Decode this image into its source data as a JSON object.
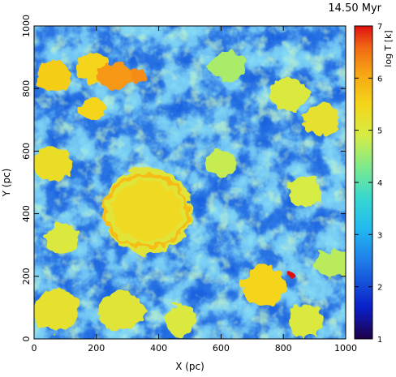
{
  "title": "14.50 Myr",
  "chart_data": {
    "type": "heatmap",
    "title": "14.50 Myr",
    "xlabel": "X (pc)",
    "ylabel": "Y (pc)",
    "xlim": [
      0,
      1000
    ],
    "ylim": [
      0,
      1000
    ],
    "xticks": [
      0,
      200,
      400,
      600,
      800,
      1000
    ],
    "yticks": [
      0,
      200,
      400,
      600,
      800,
      1000
    ],
    "colorbar": {
      "label": "log T [k]",
      "range": [
        1,
        7
      ],
      "ticks": [
        1,
        2,
        3,
        4,
        5,
        6,
        7
      ],
      "colormap": "rainbow (dark blue → cyan → green → yellow → red)"
    },
    "background_log_T": 2.8,
    "regions": [
      {
        "name": "central hot bubble",
        "cx": 365,
        "cy": 410,
        "r": 140,
        "log_T": 5.1
      },
      {
        "name": "central hot bubble core",
        "cx": 360,
        "cy": 410,
        "r": 105,
        "log_T": 5.4
      },
      {
        "name": "bubble rim",
        "cx": 360,
        "cy": 410,
        "r": 115,
        "log_T": 5.8
      },
      {
        "name": "top-left patch",
        "cx": 65,
        "cy": 840,
        "r": 55,
        "log_T": 5.6
      },
      {
        "name": "top patch",
        "cx": 190,
        "cy": 865,
        "r": 50,
        "log_T": 5.5
      },
      {
        "name": "top-centre hot patch",
        "cx": 260,
        "cy": 840,
        "r": 50,
        "log_T": 6.2
      },
      {
        "name": "top hot spot",
        "cx": 335,
        "cy": 840,
        "r": 25,
        "log_T": 6.3
      },
      {
        "name": "top-centre-left",
        "cx": 190,
        "cy": 735,
        "r": 40,
        "log_T": 5.5
      },
      {
        "name": "left-mid patch",
        "cx": 60,
        "cy": 560,
        "r": 55,
        "log_T": 5.3
      },
      {
        "name": "left-lower patch",
        "cx": 90,
        "cy": 320,
        "r": 55,
        "log_T": 5.0
      },
      {
        "name": "bottom-left patch",
        "cx": 70,
        "cy": 90,
        "r": 70,
        "log_T": 5.2
      },
      {
        "name": "bottom-centre patch",
        "cx": 280,
        "cy": 90,
        "r": 65,
        "log_T": 5.1
      },
      {
        "name": "bottom-centre-right",
        "cx": 470,
        "cy": 60,
        "r": 50,
        "log_T": 5.0
      },
      {
        "name": "right-top patch",
        "cx": 820,
        "cy": 780,
        "r": 60,
        "log_T": 5.0
      },
      {
        "name": "right-mid patch",
        "cx": 920,
        "cy": 700,
        "r": 50,
        "log_T": 5.2
      },
      {
        "name": "right patch",
        "cx": 870,
        "cy": 470,
        "r": 55,
        "log_T": 4.9
      },
      {
        "name": "lower-right bubble",
        "cx": 740,
        "cy": 170,
        "r": 65,
        "log_T": 5.5
      },
      {
        "name": "far right patch",
        "cx": 960,
        "cy": 240,
        "r": 50,
        "log_T": 4.7
      },
      {
        "name": "bottom-right patch",
        "cx": 870,
        "cy": 60,
        "r": 55,
        "log_T": 5.0
      },
      {
        "name": "upper-centre-right",
        "cx": 620,
        "cy": 870,
        "r": 55,
        "log_T": 4.6
      },
      {
        "name": "centre-right patch",
        "cx": 600,
        "cy": 560,
        "r": 45,
        "log_T": 4.8
      },
      {
        "name": "hot spot",
        "cx": 825,
        "cy": 205,
        "r": 12,
        "log_T": 7.0
      }
    ]
  }
}
